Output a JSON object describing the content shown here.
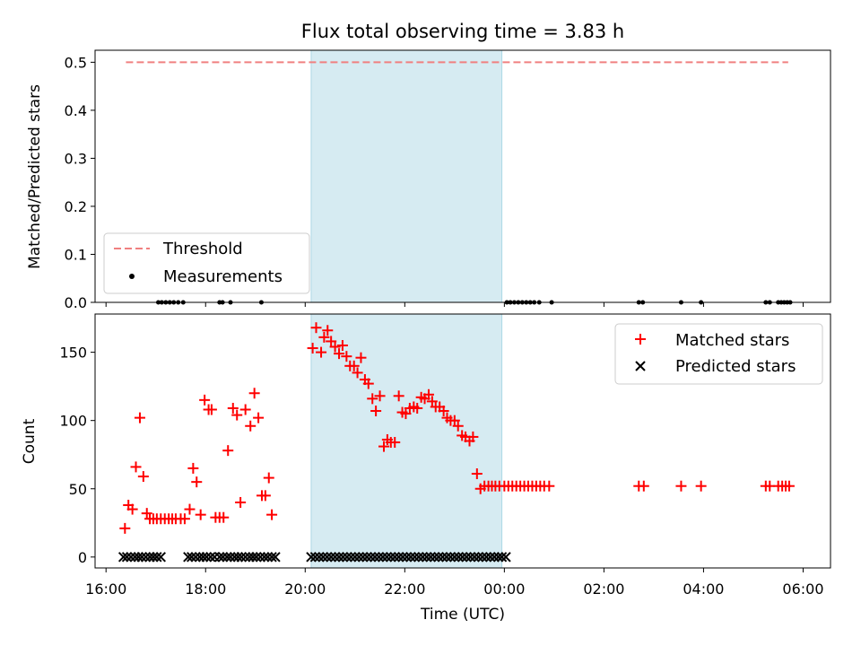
{
  "chart_data": {
    "title": "Flux total observing time = 3.83 h",
    "x_axis": {
      "label": "Time (UTC)",
      "unit": "hours since 16:00 UTC",
      "range": [
        -0.22,
        14.55
      ],
      "ticks": [
        {
          "value": 0,
          "label": "16:00"
        },
        {
          "value": 2,
          "label": "18:00"
        },
        {
          "value": 4,
          "label": "20:00"
        },
        {
          "value": 6,
          "label": "22:00"
        },
        {
          "value": 8,
          "label": "00:00"
        },
        {
          "value": 10,
          "label": "02:00"
        },
        {
          "value": 12,
          "label": "04:00"
        },
        {
          "value": 14,
          "label": "06:00"
        }
      ]
    },
    "observing_window": {
      "start": 4.12,
      "end": 7.95,
      "color": "#add8e6"
    },
    "panels": [
      {
        "name": "ratio",
        "type": "line+scatter",
        "ylabel": "Matched/Predicted stars",
        "ylim": [
          0.0,
          0.525
        ],
        "yticks": [
          {
            "value": 0.0,
            "label": "0.0"
          },
          {
            "value": 0.1,
            "label": "0.1"
          },
          {
            "value": 0.2,
            "label": "0.2"
          },
          {
            "value": 0.3,
            "label": "0.3"
          },
          {
            "value": 0.4,
            "label": "0.4"
          },
          {
            "value": 0.5,
            "label": "0.5"
          }
        ],
        "threshold": {
          "name": "Threshold",
          "value": 0.5,
          "x_start": 0.4,
          "x_end": 13.7,
          "color": "#f08080"
        },
        "measurements": {
          "name": "Measurements",
          "color": "#000000",
          "x": [
            1.05,
            1.12,
            1.2,
            1.28,
            1.36,
            1.45,
            1.55,
            2.28,
            2.34,
            2.5,
            3.12,
            8.05,
            8.12,
            8.2,
            8.28,
            8.36,
            8.44,
            8.52,
            8.6,
            8.7,
            8.95,
            10.7,
            10.78,
            11.55,
            11.95,
            13.25,
            13.33,
            13.5,
            13.56,
            13.62,
            13.68,
            13.74
          ],
          "y": [
            0,
            0,
            0,
            0,
            0,
            0,
            0,
            0,
            0,
            0,
            0,
            0,
            0,
            0,
            0,
            0,
            0,
            0,
            0,
            0,
            0,
            0,
            0,
            0,
            0,
            0,
            0,
            0,
            0,
            0,
            0,
            0
          ]
        },
        "legend": {
          "location": "lower-left",
          "entries": [
            "Threshold",
            "Measurements"
          ]
        }
      },
      {
        "name": "counts",
        "type": "scatter",
        "ylabel": "Count",
        "ylim": [
          -8,
          178
        ],
        "yticks": [
          {
            "value": 0,
            "label": "0"
          },
          {
            "value": 50,
            "label": "50"
          },
          {
            "value": 100,
            "label": "100"
          },
          {
            "value": 150,
            "label": "150"
          }
        ],
        "series": [
          {
            "name": "Matched stars",
            "marker": "+",
            "color": "#ff0000",
            "x": [
              0.38,
              0.45,
              0.53,
              0.6,
              0.68,
              0.75,
              0.82,
              0.88,
              0.95,
              1.02,
              1.1,
              1.18,
              1.26,
              1.33,
              1.4,
              1.5,
              1.58,
              1.68,
              1.75,
              1.82,
              1.9,
              1.98,
              2.06,
              2.12,
              2.2,
              2.28,
              2.36,
              2.45,
              2.55,
              2.63,
              2.7,
              2.8,
              2.9,
              2.98,
              3.06,
              3.13,
              3.2,
              3.27,
              3.33,
              4.15,
              4.22,
              4.32,
              4.38,
              4.45,
              4.52,
              4.6,
              4.68,
              4.75,
              4.83,
              4.9,
              4.98,
              5.05,
              5.12,
              5.2,
              5.27,
              5.35,
              5.42,
              5.5,
              5.58,
              5.65,
              5.72,
              5.8,
              5.88,
              5.95,
              6.02,
              6.1,
              6.18,
              6.25,
              6.33,
              6.4,
              6.48,
              6.55,
              6.62,
              6.7,
              6.78,
              6.85,
              6.92,
              7.0,
              7.07,
              7.15,
              7.22,
              7.3,
              7.37,
              7.45,
              7.52,
              7.6,
              7.68,
              7.75,
              7.82,
              7.9,
              8.0,
              8.08,
              8.16,
              8.24,
              8.32,
              8.4,
              8.48,
              8.56,
              8.64,
              8.72,
              8.8,
              8.9,
              10.7,
              10.8,
              11.55,
              11.95,
              13.25,
              13.33,
              13.5,
              13.58,
              13.65,
              13.72
            ],
            "y": [
              21,
              38,
              35,
              66,
              102,
              59,
              32,
              28,
              28,
              28,
              28,
              28,
              28,
              28,
              28,
              28,
              28,
              35,
              65,
              55,
              31,
              115,
              108,
              108,
              29,
              29,
              29,
              78,
              109,
              104,
              40,
              108,
              96,
              120,
              102,
              45,
              45,
              58,
              31,
              153,
              168,
              150,
              161,
              166,
              158,
              154,
              149,
              155,
              147,
              140,
              140,
              135,
              146,
              130,
              127,
              116,
              107,
              118,
              81,
              86,
              84,
              84,
              118,
              106,
              105,
              109,
              110,
              109,
              117,
              116,
              119,
              114,
              110,
              110,
              107,
              102,
              100,
              100,
              96,
              89,
              88,
              85,
              88,
              61,
              50,
              52,
              52,
              52,
              52,
              52,
              52,
              52,
              52,
              52,
              52,
              52,
              52,
              52,
              52,
              52,
              52,
              52,
              52,
              52,
              52,
              52,
              52,
              52,
              52,
              52,
              52,
              52
            ]
          },
          {
            "name": "Predicted stars",
            "marker": "x",
            "color": "#000000",
            "x": [
              0.35,
              0.42,
              0.5,
              0.58,
              0.65,
              0.72,
              0.8,
              0.88,
              0.95,
              1.02,
              1.1,
              1.65,
              1.72,
              1.8,
              1.88,
              1.95,
              2.02,
              2.1,
              2.18,
              2.28,
              2.35,
              2.43,
              2.5,
              2.58,
              2.65,
              2.72,
              2.8,
              2.88,
              2.95,
              3.02,
              3.1,
              3.18,
              3.25,
              3.33,
              3.4,
              4.12,
              4.2,
              4.28,
              4.36,
              4.44,
              4.52,
              4.6,
              4.68,
              4.76,
              4.84,
              4.92,
              5.0,
              5.08,
              5.16,
              5.24,
              5.32,
              5.4,
              5.48,
              5.56,
              5.64,
              5.72,
              5.8,
              5.88,
              5.96,
              6.04,
              6.12,
              6.2,
              6.28,
              6.36,
              6.44,
              6.52,
              6.6,
              6.68,
              6.76,
              6.84,
              6.92,
              7.0,
              7.08,
              7.16,
              7.24,
              7.32,
              7.4,
              7.48,
              7.56,
              7.64,
              7.72,
              7.8,
              7.88,
              7.95,
              8.03
            ],
            "y": [
              0,
              0,
              0,
              0,
              0,
              0,
              0,
              0,
              0,
              0,
              0,
              0,
              0,
              0,
              0,
              0,
              0,
              0,
              0,
              0,
              0,
              0,
              0,
              0,
              0,
              0,
              0,
              0,
              0,
              0,
              0,
              0,
              0,
              0,
              0,
              0,
              0,
              0,
              0,
              0,
              0,
              0,
              0,
              0,
              0,
              0,
              0,
              0,
              0,
              0,
              0,
              0,
              0,
              0,
              0,
              0,
              0,
              0,
              0,
              0,
              0,
              0,
              0,
              0,
              0,
              0,
              0,
              0,
              0,
              0,
              0,
              0,
              0,
              0,
              0,
              0,
              0,
              0,
              0,
              0,
              0,
              0,
              0,
              0,
              0
            ]
          }
        ],
        "legend": {
          "location": "upper-right",
          "entries": [
            "Matched stars",
            "Predicted stars"
          ]
        }
      }
    ]
  }
}
